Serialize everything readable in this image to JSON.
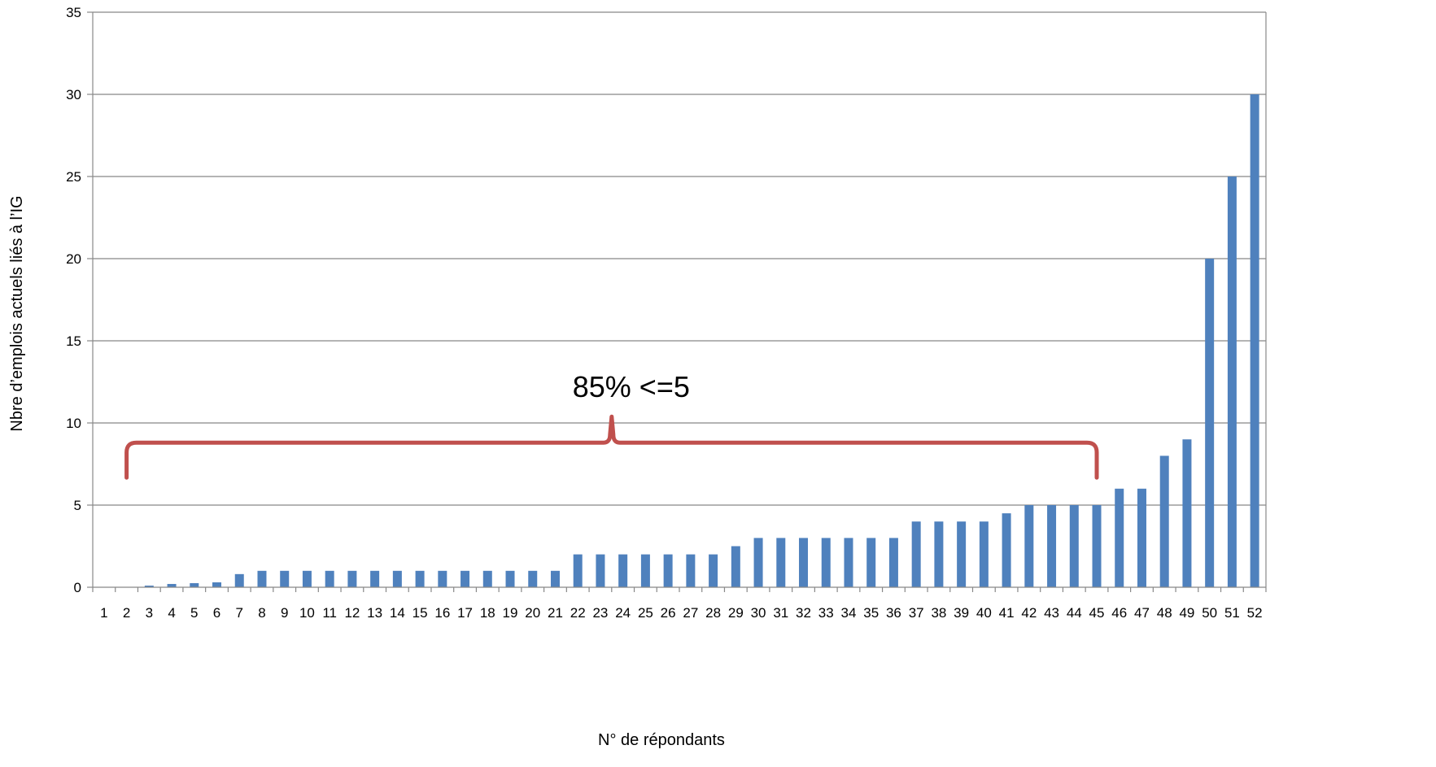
{
  "chart_data": {
    "type": "bar",
    "categories": [
      "1",
      "2",
      "3",
      "4",
      "5",
      "6",
      "7",
      "8",
      "9",
      "10",
      "11",
      "12",
      "13",
      "14",
      "15",
      "16",
      "17",
      "18",
      "19",
      "20",
      "21",
      "22",
      "23",
      "24",
      "25",
      "26",
      "27",
      "28",
      "29",
      "30",
      "31",
      "32",
      "33",
      "34",
      "35",
      "36",
      "37",
      "38",
      "39",
      "40",
      "41",
      "42",
      "43",
      "44",
      "45",
      "46",
      "47",
      "48",
      "49",
      "50",
      "51",
      "52"
    ],
    "values": [
      0,
      0,
      0.1,
      0.2,
      0.25,
      0.3,
      0.8,
      1,
      1,
      1,
      1,
      1,
      1,
      1,
      1,
      1,
      1,
      1,
      1,
      1,
      1,
      2,
      2,
      2,
      2,
      2,
      2,
      2,
      2.5,
      3,
      3,
      3,
      3,
      3,
      3,
      3,
      4,
      4,
      4,
      4,
      4.5,
      5,
      5,
      5,
      5,
      6,
      6,
      8,
      9,
      20,
      25,
      30
    ],
    "xlabel": "N° de répondants",
    "ylabel": "Nbre d’emplois actuels liés à l’IG",
    "ylim": [
      0,
      35
    ],
    "yticks": [
      0,
      5,
      10,
      15,
      20,
      25,
      30,
      35
    ],
    "grid": true,
    "bar_color": "#4f81bd",
    "annotation": {
      "text": "85% <=5",
      "brace_color": "#c0504d",
      "from_category": "2",
      "to_category": "45",
      "level": 8.8
    }
  }
}
